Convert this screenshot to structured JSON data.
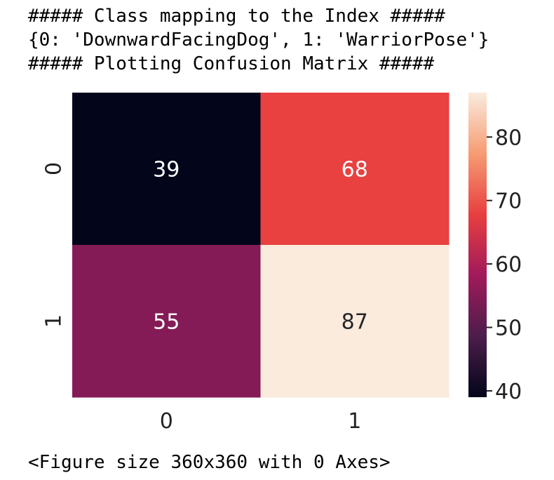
{
  "output_lines": {
    "line1": "##### Class mapping to the Index #####",
    "line2": "{0: 'DownwardFacingDog', 1: 'WarriorPose'}",
    "line3": "##### Plotting Confusion Matrix #####",
    "footer": "<Figure size 360x360 with 0 Axes>"
  },
  "chart_data": {
    "type": "heatmap",
    "title": "",
    "xlabel": "",
    "ylabel": "",
    "x_categories": [
      "0",
      "1"
    ],
    "y_categories": [
      "0",
      "1"
    ],
    "values": [
      [
        39,
        68
      ],
      [
        55,
        87
      ]
    ],
    "annotations": true,
    "colormap": "rocket",
    "colorbar": {
      "range": [
        39,
        87
      ],
      "ticks": [
        40,
        50,
        60,
        70,
        80
      ]
    },
    "grid": false
  }
}
